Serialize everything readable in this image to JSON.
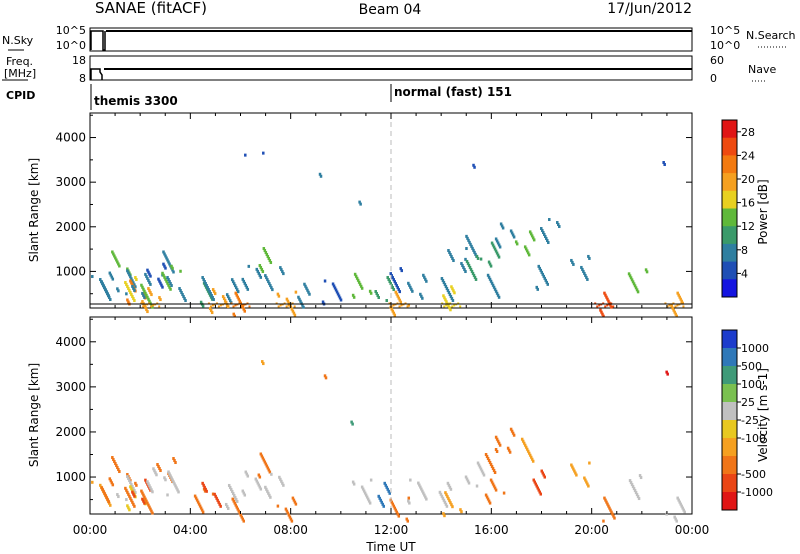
{
  "header": {
    "station": "SANAE (fitACF)",
    "beam": "Beam 04",
    "date": "17/Jun/2012"
  },
  "noise_panel": {
    "left_label": "N.Sky",
    "right_label": "N.Search",
    "left_ticks": [
      "10^5",
      "10^0"
    ],
    "right_ticks": [
      "10^5",
      "10^0"
    ]
  },
  "freq_panel": {
    "left_label_line1": "Freq.",
    "left_label_line2": "[MHz]",
    "right_label": "Nave",
    "left_ticks": [
      "18",
      "8"
    ],
    "right_ticks": [
      "60",
      "0"
    ]
  },
  "cpid": {
    "label": "CPID",
    "segments": [
      {
        "text": "themis 3300",
        "start_hour": 0
      },
      {
        "text": "normal (fast) 151",
        "start_hour": 12
      }
    ]
  },
  "x_axis": {
    "label": "Time UT",
    "tick_labels": [
      "00:00",
      "04:00",
      "08:00",
      "12:00",
      "16:00",
      "20:00",
      "00:00"
    ],
    "range_hours": [
      0,
      24
    ]
  },
  "power_panel": {
    "ylabel": "Slant Range [km]",
    "ytick_labels": [
      "1000",
      "2000",
      "3000",
      "4000"
    ],
    "cbar_label": "Power [dB]",
    "cbar_ticks": [
      "4",
      "8",
      "12",
      "16",
      "20",
      "24",
      "28"
    ],
    "cbar_colors": [
      "#1515e0",
      "#1f4fb5",
      "#2f7fa0",
      "#3a9a6a",
      "#5fb83a",
      "#e8d020",
      "#f5a020",
      "#f37a10",
      "#ee4a10",
      "#e01515"
    ]
  },
  "velocity_panel": {
    "ylabel": "Slant Range [km]",
    "ytick_labels": [
      "1000",
      "2000",
      "3000",
      "4000"
    ],
    "cbar_label": "Velocity [m s-1]",
    "cbar_ticks": [
      "1000",
      "500",
      "100",
      "25",
      "-25",
      "-100",
      "-500",
      "-1000"
    ],
    "cbar_colors": [
      "#1c3ccc",
      "#2f78b8",
      "#3f9a78",
      "#7ac050",
      "#c0c0c0",
      "#e8c820",
      "#f5a020",
      "#f07518",
      "#ea4515",
      "#e01515"
    ]
  },
  "chart_data": [
    {
      "type": "line",
      "title": "SANAE (fitACF)",
      "xlabel": "",
      "ylabel": "N.Sky",
      "series": [
        {
          "name": "N.Sky",
          "x": [
            0.0,
            0.05,
            0.1,
            0.5,
            0.65,
            0.7,
            12.0,
            24.0
          ],
          "values": [
            1,
            100000,
            100000,
            100000,
            100000,
            1,
            100000,
            100000
          ]
        }
      ]
    },
    {
      "type": "line",
      "xlabel": "",
      "ylabel": "Freq. [MHz]",
      "ylim": [
        8,
        18
      ],
      "series": [
        {
          "name": "Freq.",
          "x": [
            0.0,
            0.05,
            0.1,
            0.6,
            0.62,
            24.0
          ],
          "values": [
            8,
            12,
            12,
            12,
            9,
            12
          ]
        }
      ]
    },
    {
      "type": "scatter",
      "title": "Power [dB]",
      "xlabel": "Time UT",
      "ylabel": "Slant Range [km]",
      "x_range_hours": [
        0,
        24
      ],
      "ylim": [
        180,
        4550
      ],
      "clim": [
        0,
        30
      ],
      "series": [
        {
          "name": "echo patches",
          "points": [
            {
              "t": 0.4,
              "r": 650,
              "v": 6
            },
            {
              "t": 0.7,
              "r": 750,
              "v": 8
            },
            {
              "t": 1.2,
              "r": 1200,
              "v": 14
            },
            {
              "t": 1.4,
              "r": 800,
              "v": 6
            },
            {
              "t": 1.6,
              "r": 650,
              "v": 16
            },
            {
              "t": 1.8,
              "r": 550,
              "v": 22
            },
            {
              "t": 2.0,
              "r": 720,
              "v": 8
            },
            {
              "t": 2.2,
              "r": 500,
              "v": 12
            },
            {
              "t": 2.4,
              "r": 380,
              "v": 20
            },
            {
              "t": 2.6,
              "r": 950,
              "v": 5
            },
            {
              "t": 3.0,
              "r": 1200,
              "v": 6
            },
            {
              "t": 3.2,
              "r": 880,
              "v": 14
            },
            {
              "t": 3.4,
              "r": 650,
              "v": 7
            },
            {
              "t": 4.5,
              "r": 500,
              "v": 9
            },
            {
              "t": 4.8,
              "r": 650,
              "v": 6
            },
            {
              "t": 5.1,
              "r": 380,
              "v": 18
            },
            {
              "t": 5.5,
              "r": 580,
              "v": 7
            },
            {
              "t": 6.0,
              "r": 300,
              "v": 22
            },
            {
              "t": 6.4,
              "r": 900,
              "v": 8
            },
            {
              "t": 6.5,
              "r": 3550,
              "v": 5
            },
            {
              "t": 7.0,
              "r": 1300,
              "v": 12
            },
            {
              "t": 7.3,
              "r": 850,
              "v": 6
            },
            {
              "t": 7.8,
              "r": 300,
              "v": 20
            },
            {
              "t": 8.5,
              "r": 500,
              "v": 6
            },
            {
              "t": 9.2,
              "r": 3300,
              "v": 8
            },
            {
              "t": 9.6,
              "r": 550,
              "v": 5
            },
            {
              "t": 10.5,
              "r": 2430,
              "v": 7
            },
            {
              "t": 10.8,
              "r": 700,
              "v": 12
            },
            {
              "t": 11.7,
              "r": 650,
              "v": 10
            },
            {
              "t": 12.1,
              "r": 850,
              "v": 5
            },
            {
              "t": 12.3,
              "r": 300,
              "v": 20
            },
            {
              "t": 13.0,
              "r": 700,
              "v": 6
            },
            {
              "t": 14.1,
              "r": 650,
              "v": 8
            },
            {
              "t": 14.4,
              "r": 420,
              "v": 16
            },
            {
              "t": 14.6,
              "r": 1300,
              "v": 6
            },
            {
              "t": 15.0,
              "r": 1550,
              "v": 7
            },
            {
              "t": 15.3,
              "r": 1100,
              "v": 10
            },
            {
              "t": 15.4,
              "r": 3300,
              "v": 5
            },
            {
              "t": 15.9,
              "r": 1400,
              "v": 9
            },
            {
              "t": 16.1,
              "r": 700,
              "v": 8
            },
            {
              "t": 16.5,
              "r": 1850,
              "v": 6
            },
            {
              "t": 17.3,
              "r": 1650,
              "v": 12
            },
            {
              "t": 18.0,
              "r": 900,
              "v": 8
            },
            {
              "t": 18.3,
              "r": 1950,
              "v": 6
            },
            {
              "t": 19.5,
              "r": 1100,
              "v": 7
            },
            {
              "t": 20.5,
              "r": 300,
              "v": 24
            },
            {
              "t": 21.8,
              "r": 800,
              "v": 14
            },
            {
              "t": 23.1,
              "r": 3250,
              "v": 5
            },
            {
              "t": 23.3,
              "r": 300,
              "v": 20
            }
          ]
        }
      ]
    },
    {
      "type": "scatter",
      "title": "Velocity [m s-1]",
      "xlabel": "Time UT",
      "ylabel": "Slant Range [km]",
      "x_range_hours": [
        0,
        24
      ],
      "ylim": [
        180,
        4550
      ],
      "clim": [
        -1000,
        1000
      ],
      "series": [
        {
          "name": "echo patches",
          "points": [
            {
              "t": 0.4,
              "r": 650,
              "v": -100
            },
            {
              "t": 0.7,
              "r": 750,
              "v": -300
            },
            {
              "t": 1.2,
              "r": 1200,
              "v": -200
            },
            {
              "t": 1.4,
              "r": 800,
              "v": 50
            },
            {
              "t": 1.6,
              "r": 650,
              "v": -150
            },
            {
              "t": 1.8,
              "r": 550,
              "v": 20
            },
            {
              "t": 2.0,
              "r": 720,
              "v": -400
            },
            {
              "t": 2.2,
              "r": 500,
              "v": -120
            },
            {
              "t": 2.6,
              "r": 950,
              "v": 60
            },
            {
              "t": 3.0,
              "r": 1200,
              "v": -250
            },
            {
              "t": 3.2,
              "r": 880,
              "v": 80
            },
            {
              "t": 4.5,
              "r": 500,
              "v": -180
            },
            {
              "t": 4.8,
              "r": 650,
              "v": -350
            },
            {
              "t": 5.5,
              "r": 580,
              "v": 40
            },
            {
              "t": 6.0,
              "r": 300,
              "v": -150
            },
            {
              "t": 6.4,
              "r": 900,
              "v": 80
            },
            {
              "t": 6.5,
              "r": 3550,
              "v": -60
            },
            {
              "t": 7.0,
              "r": 1300,
              "v": -200
            },
            {
              "t": 7.3,
              "r": 850,
              "v": 60
            },
            {
              "t": 7.8,
              "r": 300,
              "v": -120
            },
            {
              "t": 9.2,
              "r": 3300,
              "v": -200
            },
            {
              "t": 10.5,
              "r": 2430,
              "v": 400
            },
            {
              "t": 10.8,
              "r": 700,
              "v": 90
            },
            {
              "t": 11.7,
              "r": 650,
              "v": 700
            },
            {
              "t": 12.3,
              "r": 300,
              "v": -200
            },
            {
              "t": 13.0,
              "r": 700,
              "v": 60
            },
            {
              "t": 14.1,
              "r": 650,
              "v": 80
            },
            {
              "t": 14.4,
              "r": 420,
              "v": -100
            },
            {
              "t": 15.3,
              "r": 1100,
              "v": 60
            },
            {
              "t": 15.9,
              "r": 1400,
              "v": -250
            },
            {
              "t": 16.1,
              "r": 700,
              "v": -300
            },
            {
              "t": 16.5,
              "r": 1850,
              "v": -150
            },
            {
              "t": 17.3,
              "r": 1650,
              "v": -80
            },
            {
              "t": 18.0,
              "r": 900,
              "v": -350
            },
            {
              "t": 19.5,
              "r": 1100,
              "v": -100
            },
            {
              "t": 20.5,
              "r": 300,
              "v": -200
            },
            {
              "t": 21.8,
              "r": 800,
              "v": 60
            },
            {
              "t": 23.1,
              "r": 3250,
              "v": -700
            },
            {
              "t": 23.3,
              "r": 300,
              "v": 40
            }
          ]
        }
      ]
    }
  ]
}
